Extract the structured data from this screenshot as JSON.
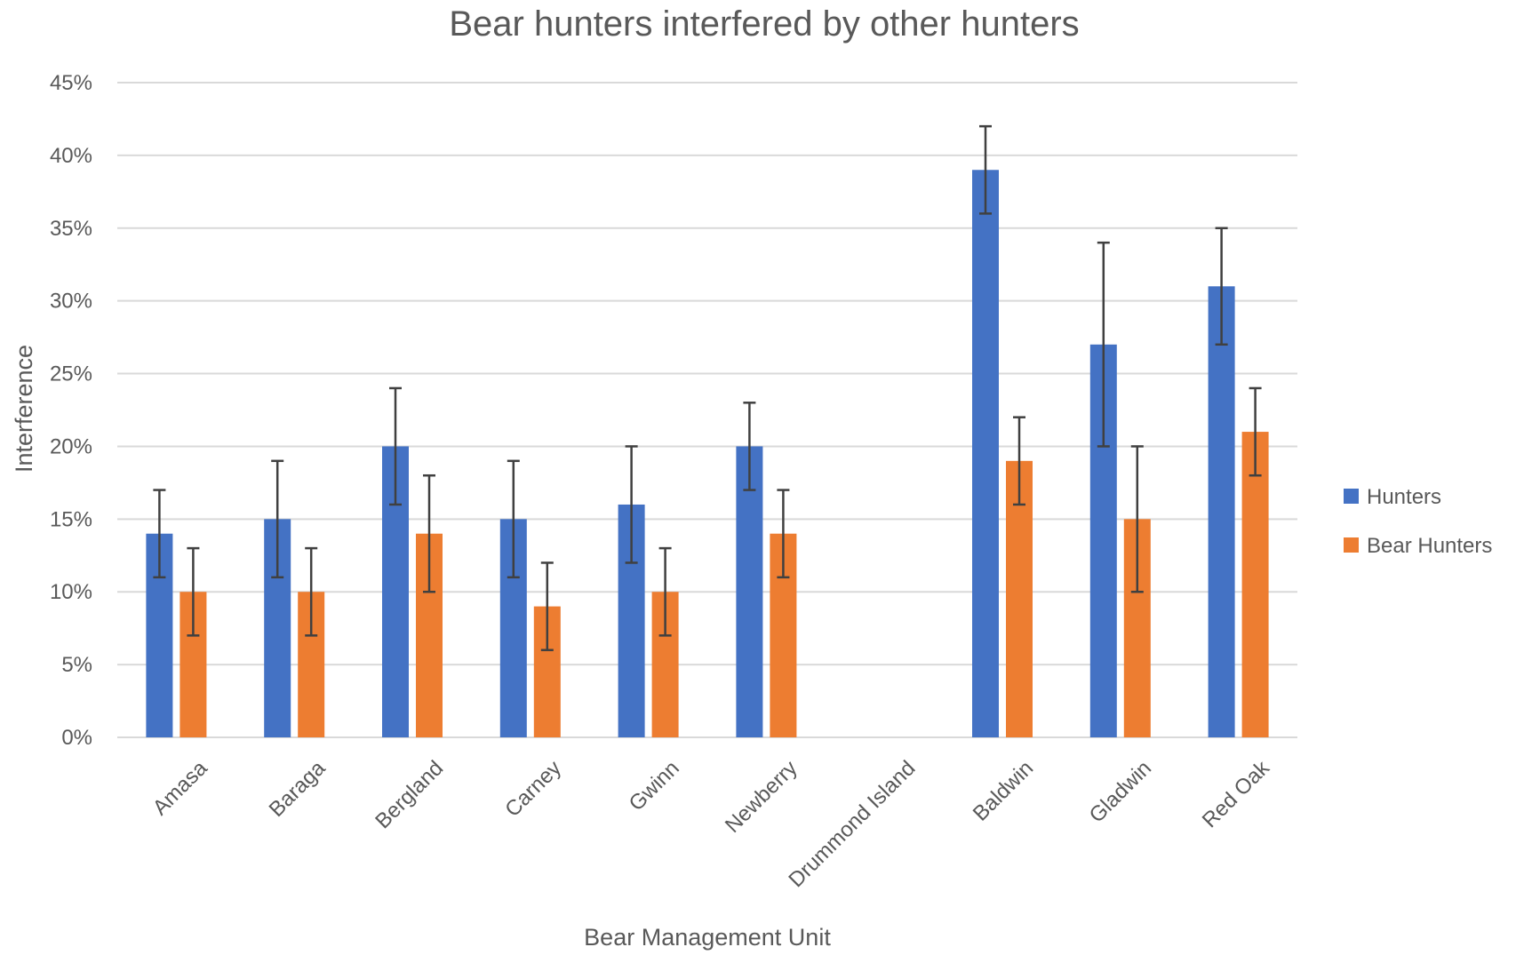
{
  "chart_data": {
    "type": "bar",
    "title": "Bear hunters interfered by other hunters",
    "xlabel": "Bear Management Unit",
    "ylabel": "Interference",
    "ylim": [
      0,
      45
    ],
    "ytick_step": 5,
    "yticks": [
      "0%",
      "5%",
      "10%",
      "15%",
      "20%",
      "25%",
      "30%",
      "35%",
      "40%",
      "45%"
    ],
    "grid": true,
    "legend_position": "right",
    "categories": [
      "Amasa",
      "Baraga",
      "Bergland",
      "Carney",
      "Gwinn",
      "Newberry",
      "Drummond Island",
      "Baldwin",
      "Gladwin",
      "Red Oak"
    ],
    "series": [
      {
        "name": "Hunters",
        "color": "#4472C4",
        "values": [
          14,
          15,
          20,
          15,
          16,
          20,
          null,
          39,
          27,
          31
        ],
        "error_low": [
          11,
          11,
          16,
          11,
          12,
          17,
          null,
          36,
          20,
          27
        ],
        "error_high": [
          17,
          19,
          24,
          19,
          20,
          23,
          null,
          42,
          34,
          35
        ]
      },
      {
        "name": "Bear Hunters",
        "color": "#ED7D31",
        "values": [
          10,
          10,
          14,
          9,
          10,
          14,
          null,
          19,
          15,
          21
        ],
        "error_low": [
          7,
          7,
          10,
          6,
          7,
          11,
          null,
          16,
          10,
          18
        ],
        "error_high": [
          13,
          13,
          18,
          12,
          13,
          17,
          null,
          22,
          20,
          24
        ]
      }
    ],
    "colors": {
      "gridline": "#D9D9D9",
      "error_bar": "#404040",
      "text": "#595959"
    }
  }
}
